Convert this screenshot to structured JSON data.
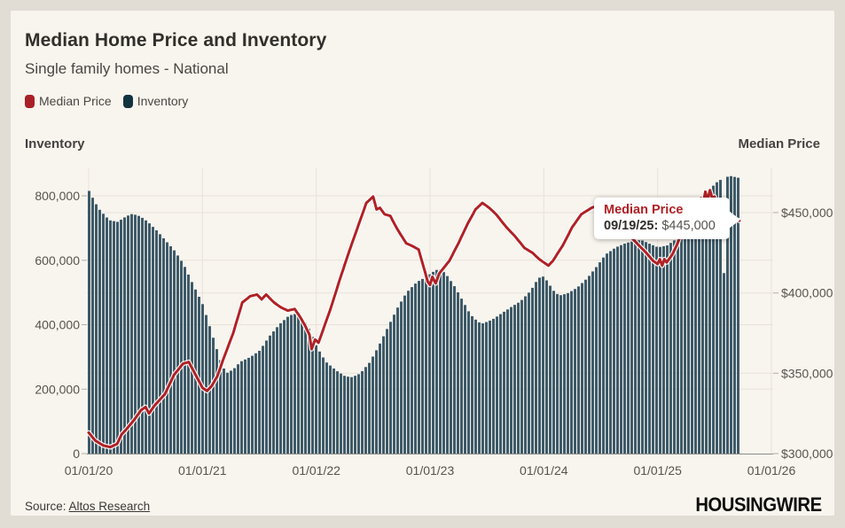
{
  "header": {
    "title": "Median Home Price and Inventory",
    "subtitle": "Single family homes - National"
  },
  "legend": {
    "items": [
      {
        "label": "Median Price",
        "color": "#a82025"
      },
      {
        "label": "Inventory",
        "color": "#123340"
      }
    ]
  },
  "axes": {
    "left_title": "Inventory",
    "right_title": "Median Price"
  },
  "tooltip": {
    "title": "Median Price",
    "date_label": "09/19/25:",
    "value": "$445,000"
  },
  "footer": {
    "source_prefix": "Source:",
    "source_link": "Altos Research",
    "brand": "HOUSINGWIRE"
  },
  "chart_data": {
    "type": "combo_bar_line",
    "title": "Median Home Price and Inventory",
    "subtitle": "Single family homes - National",
    "x_unit": "decimal years since 01/01/20",
    "x_ticks": [
      "01/01/20",
      "01/01/21",
      "01/01/22",
      "01/01/23",
      "01/01/24",
      "01/01/25",
      "01/01/26"
    ],
    "left_axis": {
      "title": "Inventory",
      "ticks": [
        "0",
        "200,000",
        "400,000",
        "600,000",
        "800,000"
      ],
      "tick_values": [
        0,
        200000,
        400000,
        600000,
        800000
      ],
      "range": [
        0,
        885000
      ]
    },
    "right_axis": {
      "title": "Median Price",
      "ticks": [
        "$300,000",
        "$350,000",
        "$400,000",
        "$450,000"
      ],
      "tick_values": [
        300000,
        350000,
        400000,
        450000
      ],
      "range": [
        300000,
        477000
      ]
    },
    "grid": true,
    "legend_position": "top-left",
    "last_point": {
      "date": "09/19/25",
      "median_price": 445000
    },
    "series": [
      {
        "name": "Inventory",
        "type": "bar",
        "axis": "left",
        "color": "#3d5a68",
        "points": [
          [
            0,
            815000
          ],
          [
            0.04,
            788000
          ],
          [
            0.08,
            762000
          ],
          [
            0.13,
            742000
          ],
          [
            0.18,
            724000
          ],
          [
            0.25,
            719000
          ],
          [
            0.33,
            737000
          ],
          [
            0.38,
            744000
          ],
          [
            0.45,
            736000
          ],
          [
            0.52,
            718000
          ],
          [
            0.6,
            690000
          ],
          [
            0.67,
            662000
          ],
          [
            0.75,
            630000
          ],
          [
            0.83,
            588000
          ],
          [
            0.92,
            520000
          ],
          [
            1,
            462000
          ],
          [
            1.06,
            395000
          ],
          [
            1.13,
            315000
          ],
          [
            1.17,
            272000
          ],
          [
            1.21,
            250000
          ],
          [
            1.27,
            262000
          ],
          [
            1.33,
            285000
          ],
          [
            1.42,
            300000
          ],
          [
            1.5,
            320000
          ],
          [
            1.58,
            362000
          ],
          [
            1.67,
            400000
          ],
          [
            1.75,
            426000
          ],
          [
            1.8,
            434000
          ],
          [
            1.85,
            428000
          ],
          [
            1.92,
            398000
          ],
          [
            2,
            332000
          ],
          [
            2.08,
            285000
          ],
          [
            2.17,
            258000
          ],
          [
            2.25,
            240000
          ],
          [
            2.31,
            237000
          ],
          [
            2.38,
            248000
          ],
          [
            2.46,
            280000
          ],
          [
            2.54,
            330000
          ],
          [
            2.63,
            395000
          ],
          [
            2.71,
            452000
          ],
          [
            2.79,
            500000
          ],
          [
            2.88,
            532000
          ],
          [
            2.96,
            548000
          ],
          [
            3.04,
            568000
          ],
          [
            3.08,
            573000
          ],
          [
            3.13,
            560000
          ],
          [
            3.21,
            520000
          ],
          [
            3.29,
            470000
          ],
          [
            3.35,
            432000
          ],
          [
            3.42,
            408000
          ],
          [
            3.46,
            404000
          ],
          [
            3.54,
            415000
          ],
          [
            3.63,
            436000
          ],
          [
            3.71,
            455000
          ],
          [
            3.79,
            472000
          ],
          [
            3.88,
            505000
          ],
          [
            3.94,
            540000
          ],
          [
            3.98,
            553000
          ],
          [
            4.02,
            538000
          ],
          [
            4.08,
            506000
          ],
          [
            4.13,
            490000
          ],
          [
            4.21,
            498000
          ],
          [
            4.29,
            515000
          ],
          [
            4.38,
            545000
          ],
          [
            4.46,
            580000
          ],
          [
            4.54,
            618000
          ],
          [
            4.63,
            640000
          ],
          [
            4.71,
            652000
          ],
          [
            4.79,
            660000
          ],
          [
            4.85,
            663000
          ],
          [
            4.92,
            652000
          ],
          [
            5,
            640000
          ],
          [
            5.08,
            646000
          ],
          [
            5.17,
            668000
          ],
          [
            5.25,
            700000
          ],
          [
            5.33,
            748000
          ],
          [
            5.42,
            800000
          ],
          [
            5.5,
            838000
          ],
          [
            5.56,
            852000
          ],
          [
            5.63,
            862000
          ],
          [
            5.68,
            858000
          ],
          [
            5.72,
            855000
          ]
        ],
        "anomalies": [
          [
            5.58,
            560000
          ]
        ]
      },
      {
        "name": "Median Price",
        "type": "line",
        "axis": "right",
        "color": "#b02125",
        "points": [
          [
            0,
            313000
          ],
          [
            0.06,
            308000
          ],
          [
            0.13,
            305000
          ],
          [
            0.19,
            304000
          ],
          [
            0.25,
            306000
          ],
          [
            0.29,
            312000
          ],
          [
            0.33,
            315000
          ],
          [
            0.4,
            321000
          ],
          [
            0.46,
            327000
          ],
          [
            0.5,
            329000
          ],
          [
            0.53,
            325000
          ],
          [
            0.58,
            330000
          ],
          [
            0.67,
            337000
          ],
          [
            0.75,
            349000
          ],
          [
            0.83,
            356000
          ],
          [
            0.88,
            357000
          ],
          [
            0.94,
            349000
          ],
          [
            1,
            341000
          ],
          [
            1.04,
            339000
          ],
          [
            1.08,
            342000
          ],
          [
            1.13,
            348000
          ],
          [
            1.19,
            360000
          ],
          [
            1.27,
            375000
          ],
          [
            1.35,
            394000
          ],
          [
            1.42,
            398000
          ],
          [
            1.48,
            399000
          ],
          [
            1.52,
            396000
          ],
          [
            1.56,
            399000
          ],
          [
            1.63,
            394000
          ],
          [
            1.69,
            391000
          ],
          [
            1.75,
            389000
          ],
          [
            1.81,
            390000
          ],
          [
            1.85,
            386000
          ],
          [
            1.9,
            380000
          ],
          [
            1.94,
            374000
          ],
          [
            1.96,
            365000
          ],
          [
            1.99,
            371000
          ],
          [
            2.02,
            369000
          ],
          [
            2.06,
            377000
          ],
          [
            2.13,
            391000
          ],
          [
            2.21,
            409000
          ],
          [
            2.29,
            426000
          ],
          [
            2.38,
            444000
          ],
          [
            2.44,
            456000
          ],
          [
            2.5,
            460000
          ],
          [
            2.53,
            452000
          ],
          [
            2.56,
            453000
          ],
          [
            2.6,
            449000
          ],
          [
            2.65,
            448000
          ],
          [
            2.71,
            440000
          ],
          [
            2.79,
            431000
          ],
          [
            2.85,
            429000
          ],
          [
            2.9,
            427000
          ],
          [
            2.94,
            417000
          ],
          [
            2.98,
            407000
          ],
          [
            3,
            405000
          ],
          [
            3.02,
            410000
          ],
          [
            3.05,
            406000
          ],
          [
            3.08,
            412000
          ],
          [
            3.17,
            420000
          ],
          [
            3.25,
            431000
          ],
          [
            3.33,
            443000
          ],
          [
            3.4,
            452000
          ],
          [
            3.46,
            456000
          ],
          [
            3.52,
            453000
          ],
          [
            3.58,
            449000
          ],
          [
            3.67,
            441000
          ],
          [
            3.75,
            435000
          ],
          [
            3.83,
            428000
          ],
          [
            3.9,
            425000
          ],
          [
            3.96,
            421000
          ],
          [
            4.02,
            418000
          ],
          [
            4.04,
            417000
          ],
          [
            4.08,
            420000
          ],
          [
            4.17,
            430000
          ],
          [
            4.25,
            441000
          ],
          [
            4.33,
            449000
          ],
          [
            4.42,
            453000
          ],
          [
            4.46,
            454000
          ],
          [
            4.52,
            451000
          ],
          [
            4.58,
            447000
          ],
          [
            4.67,
            442000
          ],
          [
            4.75,
            436000
          ],
          [
            4.83,
            430000
          ],
          [
            4.9,
            425000
          ],
          [
            4.96,
            420000
          ],
          [
            5,
            418000
          ],
          [
            5.02,
            421000
          ],
          [
            5.04,
            417000
          ],
          [
            5.06,
            421000
          ],
          [
            5.08,
            419000
          ],
          [
            5.13,
            424000
          ],
          [
            5.17,
            430000
          ],
          [
            5.21,
            437000
          ],
          [
            5.27,
            446000
          ],
          [
            5.33,
            453000
          ],
          [
            5.38,
            459000
          ],
          [
            5.4,
            456000
          ],
          [
            5.42,
            463000
          ],
          [
            5.44,
            458000
          ],
          [
            5.46,
            464000
          ],
          [
            5.48,
            459000
          ],
          [
            5.5,
            460000
          ],
          [
            5.52,
            455000
          ],
          [
            5.54,
            452000
          ],
          [
            5.58,
            450000
          ],
          [
            5.63,
            448000
          ],
          [
            5.67,
            446000
          ],
          [
            5.72,
            445000
          ]
        ]
      }
    ]
  }
}
